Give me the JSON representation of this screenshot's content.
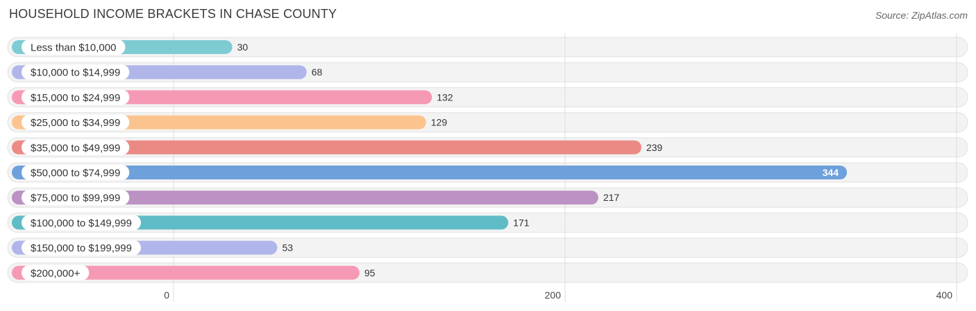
{
  "title": "HOUSEHOLD INCOME BRACKETS IN CHASE COUNTY",
  "source": "Source: ZipAtlas.com",
  "chart_data": {
    "type": "bar",
    "orientation": "horizontal",
    "title": "HOUSEHOLD INCOME BRACKETS IN CHASE COUNTY",
    "categories": [
      "Less than $10,000",
      "$10,000 to $14,999",
      "$15,000 to $24,999",
      "$25,000 to $34,999",
      "$35,000 to $49,999",
      "$50,000 to $74,999",
      "$75,000 to $99,999",
      "$100,000 to $149,999",
      "$150,000 to $199,999",
      "$200,000+"
    ],
    "values": [
      30,
      68,
      132,
      129,
      239,
      344,
      217,
      171,
      53,
      95
    ],
    "value_labels": [
      "30",
      "68",
      "132",
      "129",
      "239",
      "344",
      "217",
      "171",
      "53",
      "95"
    ],
    "colors": [
      "#7ecbd4",
      "#b0b6ea",
      "#f699b5",
      "#fbc48f",
      "#eb8a84",
      "#6ea0dc",
      "#bb92c3",
      "#5fbcc6",
      "#b0b6ea",
      "#f699b5"
    ],
    "xlim": [
      0,
      400
    ],
    "xticks": [
      0,
      200,
      400
    ],
    "xtick_labels": [
      "0",
      "200",
      "400"
    ],
    "grid": true,
    "xlabel": "",
    "ylabel": ""
  }
}
